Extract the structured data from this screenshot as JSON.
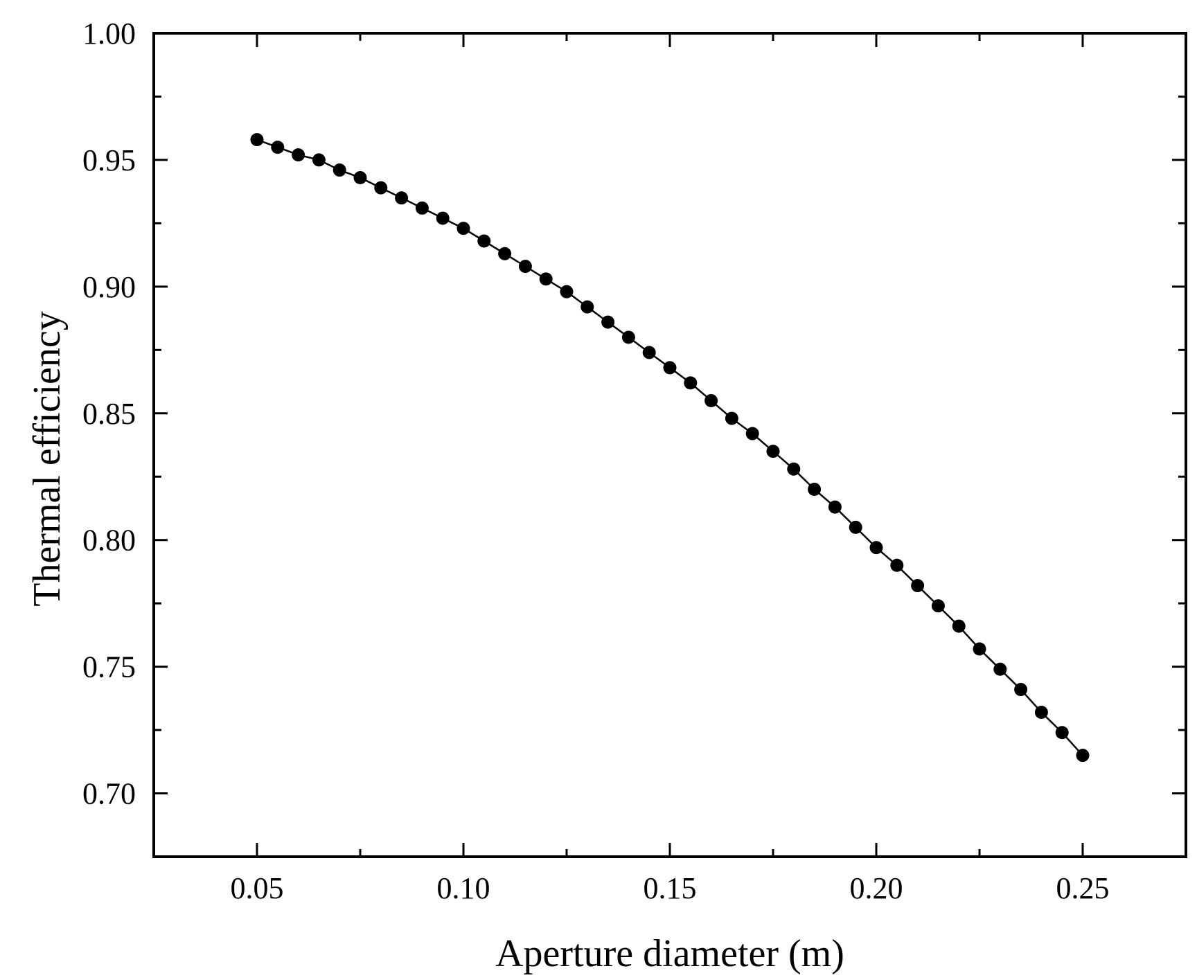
{
  "chart_data": {
    "type": "line",
    "title": "",
    "xlabel": "Aperture diameter (m)",
    "ylabel": "Thermal efficiency",
    "xlim": [
      0.025,
      0.275
    ],
    "ylim": [
      0.675,
      1.0
    ],
    "xticks": [
      0.05,
      0.1,
      0.15,
      0.2,
      0.25
    ],
    "xtick_labels": [
      "0.05",
      "0.10",
      "0.15",
      "0.20",
      "0.25"
    ],
    "yticks": [
      0.7,
      0.75,
      0.8,
      0.85,
      0.9,
      0.95,
      1.0
    ],
    "ytick_labels": [
      "0.70",
      "0.75",
      "0.80",
      "0.85",
      "0.90",
      "0.95",
      "1.00"
    ],
    "grid": false,
    "legend": "none",
    "marker": "filled-circle",
    "color": "#000000",
    "series": [
      {
        "x": [
          0.05,
          0.055,
          0.06,
          0.065,
          0.07,
          0.075,
          0.08,
          0.085,
          0.09,
          0.095,
          0.1,
          0.105,
          0.11,
          0.115,
          0.12,
          0.125,
          0.13,
          0.135,
          0.14,
          0.145,
          0.15,
          0.155,
          0.16,
          0.165,
          0.17,
          0.175,
          0.18,
          0.185,
          0.19,
          0.195,
          0.2,
          0.205,
          0.21,
          0.215,
          0.22,
          0.225,
          0.23,
          0.235,
          0.24,
          0.245,
          0.25
        ],
        "values": [
          0.958,
          0.955,
          0.952,
          0.95,
          0.946,
          0.943,
          0.939,
          0.935,
          0.931,
          0.927,
          0.923,
          0.918,
          0.913,
          0.908,
          0.903,
          0.898,
          0.892,
          0.886,
          0.88,
          0.874,
          0.868,
          0.862,
          0.855,
          0.848,
          0.842,
          0.835,
          0.828,
          0.82,
          0.813,
          0.805,
          0.797,
          0.79,
          0.782,
          0.774,
          0.766,
          0.757,
          0.749,
          0.741,
          0.732,
          0.724,
          0.715
        ]
      }
    ]
  }
}
